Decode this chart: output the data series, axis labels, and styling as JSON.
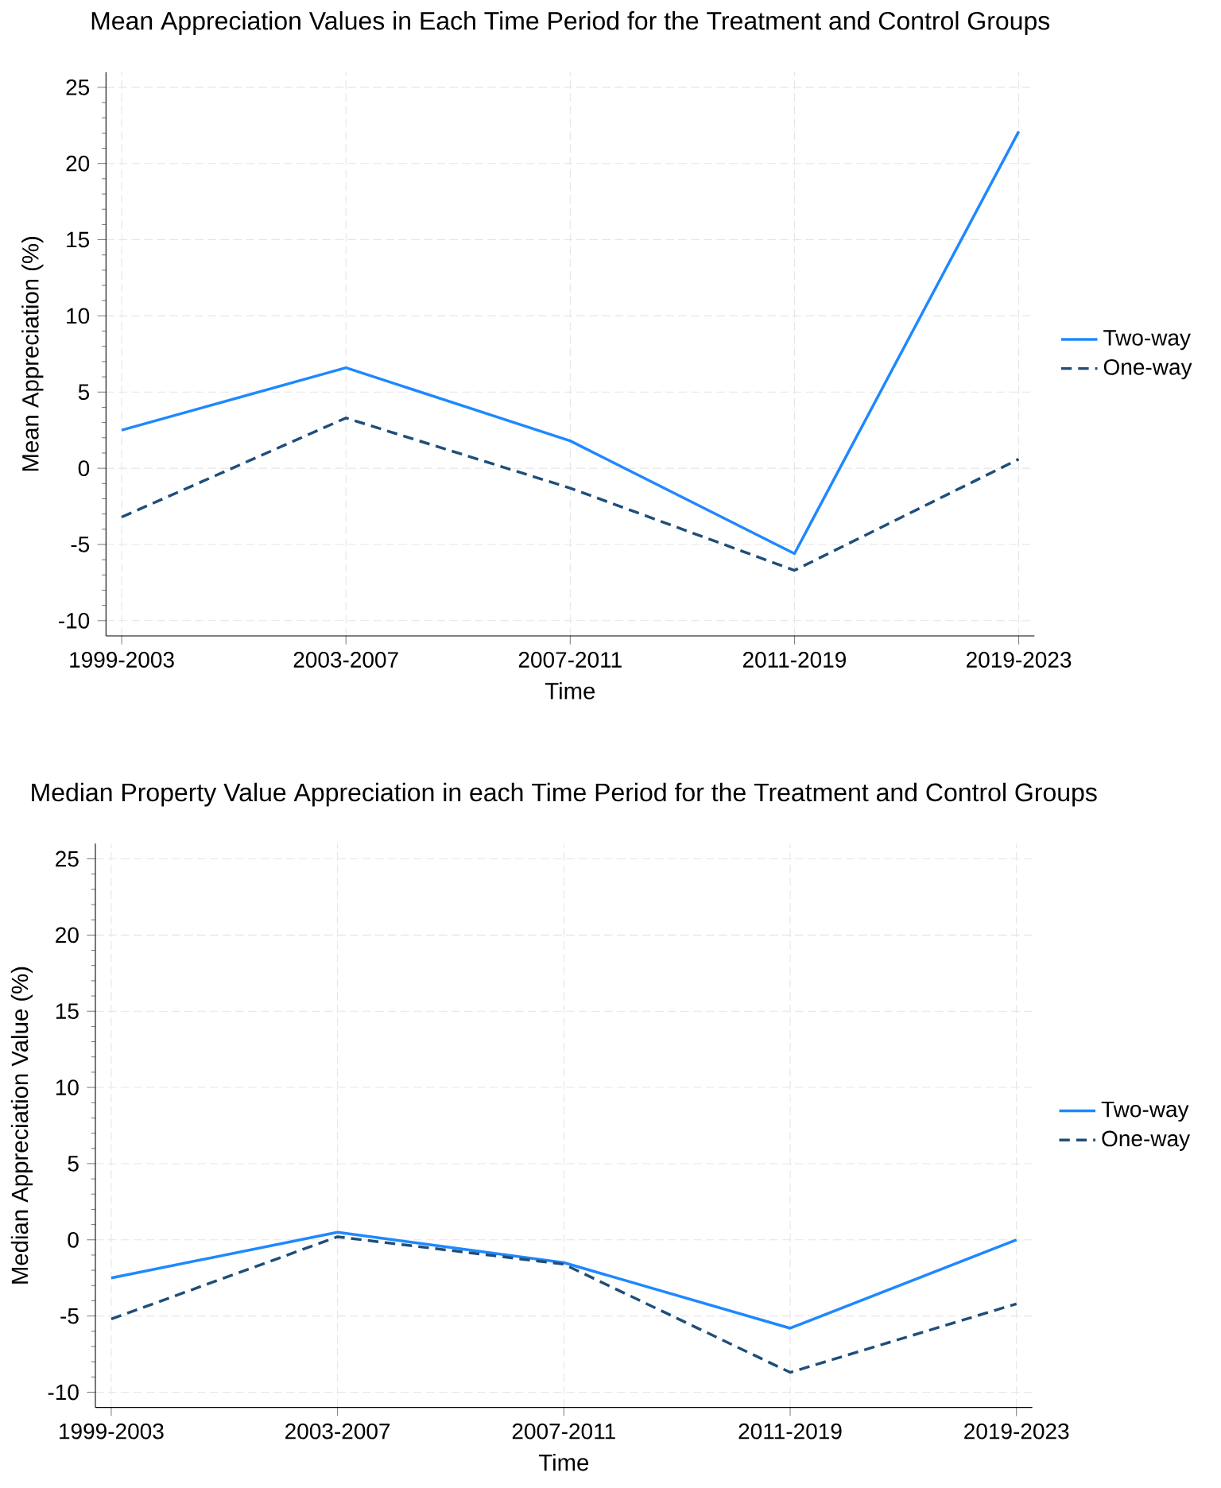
{
  "chart_data": [
    {
      "type": "line",
      "title": "Mean Appreciation Values in Each Time Period for the Treatment and Control Groups",
      "xlabel": "Time",
      "ylabel": "Mean Appreciation (%)",
      "categories": [
        "1999-2003",
        "2003-2007",
        "2007-2011",
        "2011-2019",
        "2019-2023"
      ],
      "series": [
        {
          "name": "Two-way",
          "color": "#1e88ff",
          "line_style": "solid",
          "values": [
            2.5,
            6.6,
            1.8,
            -5.6,
            22.1
          ]
        },
        {
          "name": "One-way",
          "color": "#1f4e79",
          "line_style": "dashed",
          "values": [
            -3.2,
            3.3,
            -1.3,
            -6.7,
            0.6
          ]
        }
      ],
      "ylim": [
        -11,
        26
      ],
      "yticks": [
        -10,
        -5,
        0,
        5,
        10,
        15,
        20,
        25
      ],
      "grid": true,
      "legend": "right",
      "marker": "none"
    },
    {
      "type": "line",
      "title": "Median Property Value Appreciation in each Time Period for the Treatment and Control Groups",
      "xlabel": "Time",
      "ylabel": "Median Appreciation Value (%)",
      "categories": [
        "1999-2003",
        "2003-2007",
        "2007-2011",
        "2011-2019",
        "2019-2023"
      ],
      "series": [
        {
          "name": "Two-way",
          "color": "#1e88ff",
          "line_style": "solid",
          "values": [
            -2.5,
            0.5,
            -1.5,
            -5.8,
            0.0
          ]
        },
        {
          "name": "One-way",
          "color": "#1f4e79",
          "line_style": "dashed",
          "values": [
            -5.2,
            0.2,
            -1.6,
            -8.7,
            -4.2
          ]
        }
      ],
      "ylim": [
        -11,
        26
      ],
      "yticks": [
        -10,
        -5,
        0,
        5,
        10,
        15,
        20,
        25
      ],
      "grid": true,
      "legend": "right",
      "marker": "none"
    }
  ]
}
